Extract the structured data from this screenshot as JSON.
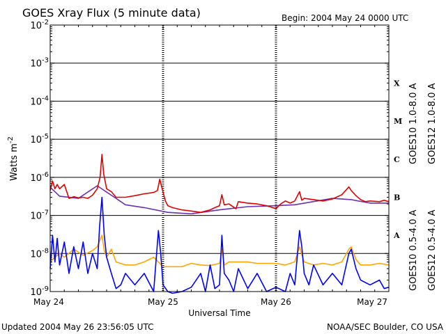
{
  "header": {
    "title": "GOES Xray Flux (5 minute data)",
    "begin": "Begin:  2004 May 24 0000 UTC"
  },
  "footer": {
    "updated": "Updated 2004 May 26 23:56:05 UTC",
    "credit": "NOAA/SEC Boulder, CO USA"
  },
  "colors": {
    "goes10_long": "#6a2fb5",
    "goes12_long": "#e00000",
    "goes10_short": "#ffa500",
    "goes12_short": "#0000ff"
  },
  "chart_data": {
    "type": "line",
    "title": "GOES Xray Flux (5 minute data)",
    "xlabel": "Universal Time",
    "ylabel": "Watts m",
    "ylabel_sup": "-2",
    "yscale": "log",
    "ylim": [
      1e-09,
      0.01
    ],
    "y_ticks": [
      {
        "value": 0.01,
        "base": "10",
        "exp": "-2"
      },
      {
        "value": 0.001,
        "base": "10",
        "exp": "-3"
      },
      {
        "value": 0.0001,
        "base": "10",
        "exp": "-4"
      },
      {
        "value": 1e-05,
        "base": "10",
        "exp": "-5"
      },
      {
        "value": 1e-06,
        "base": "10",
        "exp": "-6"
      },
      {
        "value": 1e-07,
        "base": "10",
        "exp": "-7"
      },
      {
        "value": 1e-08,
        "base": "10",
        "exp": "-8"
      },
      {
        "value": 1e-09,
        "base": "10",
        "exp": "-9"
      }
    ],
    "xlim": [
      0,
      72
    ],
    "x_unit": "hours since 2004 May 24 0000 UTC",
    "x_ticks": [
      {
        "value": 0,
        "label": "May 24"
      },
      {
        "value": 24,
        "label": "May 25"
      },
      {
        "value": 48,
        "label": "May 26"
      },
      {
        "value": 72,
        "label": "May 27"
      }
    ],
    "flare_classes": [
      {
        "label": "X",
        "value": 0.0003
      },
      {
        "label": "M",
        "value": 3e-05
      },
      {
        "label": "C",
        "value": 3e-06
      },
      {
        "label": "B",
        "value": 3e-07
      },
      {
        "label": "A",
        "value": 3e-08
      }
    ],
    "grid": "horizontal lines at each decade",
    "legend": "right side, rotated",
    "series": [
      {
        "name": "GOES10 1.0-8.0 A",
        "color": "#6a2fb5",
        "points": [
          [
            0,
            5.5e-07
          ],
          [
            2,
            3.2e-07
          ],
          [
            6,
            2.8e-07
          ],
          [
            10,
            6e-07
          ],
          [
            14,
            2.8e-07
          ],
          [
            16,
            1.9e-07
          ],
          [
            20,
            1.6e-07
          ],
          [
            25,
            1.2e-07
          ],
          [
            30,
            1.1e-07
          ],
          [
            36,
            1.4e-07
          ],
          [
            42,
            1.7e-07
          ],
          [
            48,
            1.8e-07
          ],
          [
            52,
            1.9e-07
          ],
          [
            60,
            2.8e-07
          ],
          [
            64,
            2.6e-07
          ],
          [
            68,
            2.1e-07
          ],
          [
            72,
            2.1e-07
          ]
        ]
      },
      {
        "name": "GOES12 1.0-8.0 A",
        "color": "#e00000",
        "points": [
          [
            0,
            4.5e-07
          ],
          [
            0.5,
            8e-07
          ],
          [
            1,
            5e-07
          ],
          [
            1.5,
            6.5e-07
          ],
          [
            2,
            5e-07
          ],
          [
            3,
            6.5e-07
          ],
          [
            4,
            2.8e-07
          ],
          [
            5,
            3.1e-07
          ],
          [
            6,
            2.9e-07
          ],
          [
            7,
            3e-07
          ],
          [
            8,
            2.8e-07
          ],
          [
            9,
            3.4e-07
          ],
          [
            10,
            5e-07
          ],
          [
            10.6,
            1e-06
          ],
          [
            11,
            4e-06
          ],
          [
            11.4,
            1.2e-06
          ],
          [
            12,
            5e-07
          ],
          [
            13,
            4.2e-07
          ],
          [
            14,
            3e-07
          ],
          [
            16,
            3e-07
          ],
          [
            18,
            3.3e-07
          ],
          [
            20,
            3.7e-07
          ],
          [
            22,
            4e-07
          ],
          [
            22.8,
            4.5e-07
          ],
          [
            23.3,
            9e-07
          ],
          [
            23.8,
            5e-07
          ],
          [
            24.5,
            2.4e-07
          ],
          [
            25,
            1.8e-07
          ],
          [
            26,
            1.6e-07
          ],
          [
            28,
            1.4e-07
          ],
          [
            30,
            1.3e-07
          ],
          [
            32,
            1.2e-07
          ],
          [
            34,
            1.4e-07
          ],
          [
            35,
            1.6e-07
          ],
          [
            36,
            1.8e-07
          ],
          [
            36.5,
            3.5e-07
          ],
          [
            37,
            1.9e-07
          ],
          [
            38,
            2e-07
          ],
          [
            39.5,
            1.5e-07
          ],
          [
            40,
            2.3e-07
          ],
          [
            42,
            2.1e-07
          ],
          [
            44,
            2e-07
          ],
          [
            46,
            1.8e-07
          ],
          [
            48,
            1.5e-07
          ],
          [
            49,
            2e-07
          ],
          [
            50,
            2.4e-07
          ],
          [
            51,
            2.1e-07
          ],
          [
            52,
            2.4e-07
          ],
          [
            53,
            4.2e-07
          ],
          [
            53.5,
            2.5e-07
          ],
          [
            54,
            2.8e-07
          ],
          [
            56,
            2.6e-07
          ],
          [
            58,
            2.4e-07
          ],
          [
            60,
            2.7e-07
          ],
          [
            62,
            3.5e-07
          ],
          [
            63,
            4.8e-07
          ],
          [
            63.5,
            5.6e-07
          ],
          [
            64,
            4.5e-07
          ],
          [
            65,
            3.3e-07
          ],
          [
            66,
            2.6e-07
          ],
          [
            67,
            2.3e-07
          ],
          [
            68,
            2.4e-07
          ],
          [
            70,
            2.3e-07
          ],
          [
            71,
            2.5e-07
          ],
          [
            72,
            2.3e-07
          ]
        ]
      },
      {
        "name": "GOES10 0.5-4.0 A",
        "color": "#ffa500",
        "points": [
          [
            0,
            6e-09
          ],
          [
            1,
            8e-09
          ],
          [
            2,
            1e-08
          ],
          [
            3,
            8e-09
          ],
          [
            5,
            1.3e-08
          ],
          [
            7,
            9e-09
          ],
          [
            9,
            1.2e-08
          ],
          [
            10,
            1.5e-08
          ],
          [
            11,
            3e-08
          ],
          [
            11.5,
            1.2e-08
          ],
          [
            12,
            8e-09
          ],
          [
            13,
            1.3e-08
          ],
          [
            14,
            6e-09
          ],
          [
            16,
            5e-09
          ],
          [
            18,
            5e-09
          ],
          [
            20,
            6e-09
          ],
          [
            22,
            8e-09
          ],
          [
            24,
            4.5e-09
          ],
          [
            26,
            4.5e-09
          ],
          [
            28,
            4.5e-09
          ],
          [
            30,
            5.5e-09
          ],
          [
            32,
            5e-09
          ],
          [
            34,
            4.8e-09
          ],
          [
            36,
            5.5e-09
          ],
          [
            36.5,
            1.3e-08
          ],
          [
            37,
            5e-09
          ],
          [
            38,
            6e-09
          ],
          [
            40,
            6e-09
          ],
          [
            42,
            6e-09
          ],
          [
            44,
            5.5e-09
          ],
          [
            46,
            5.5e-09
          ],
          [
            48,
            5.5e-09
          ],
          [
            50,
            5e-09
          ],
          [
            52,
            6e-09
          ],
          [
            53,
            1.5e-08
          ],
          [
            54,
            6e-09
          ],
          [
            56,
            5e-09
          ],
          [
            58,
            5.5e-09
          ],
          [
            60,
            5e-09
          ],
          [
            62,
            6e-09
          ],
          [
            63.5,
            1.3e-08
          ],
          [
            64,
            1.5e-08
          ],
          [
            65,
            7e-09
          ],
          [
            66,
            5e-09
          ],
          [
            68,
            5e-09
          ],
          [
            70,
            5.5e-09
          ],
          [
            72,
            5e-09
          ]
        ]
      },
      {
        "name": "GOES12 0.5-4.0 A",
        "color": "#0000ff",
        "points": [
          [
            0,
            4e-09
          ],
          [
            0.5,
            3e-08
          ],
          [
            1,
            6e-09
          ],
          [
            1.5,
            2.5e-08
          ],
          [
            2,
            5e-09
          ],
          [
            3,
            2e-08
          ],
          [
            4,
            3e-09
          ],
          [
            5,
            1.5e-08
          ],
          [
            6,
            4e-09
          ],
          [
            7,
            2e-08
          ],
          [
            8,
            3e-09
          ],
          [
            9,
            1e-08
          ],
          [
            10,
            4e-09
          ],
          [
            10.5,
            5e-08
          ],
          [
            11,
            3e-07
          ],
          [
            11.5,
            3e-08
          ],
          [
            12,
            8e-09
          ],
          [
            13,
            3e-09
          ],
          [
            14,
            1.2e-09
          ],
          [
            15,
            1.5e-09
          ],
          [
            16,
            3e-09
          ],
          [
            18,
            1.5e-09
          ],
          [
            20,
            3e-09
          ],
          [
            22,
            1e-09
          ],
          [
            23,
            4e-08
          ],
          [
            23.5,
            1e-08
          ],
          [
            24,
            1.5e-09
          ],
          [
            25,
            1e-09
          ],
          [
            26,
            9e-10
          ],
          [
            28,
            1e-09
          ],
          [
            30,
            1.3e-09
          ],
          [
            32,
            3e-09
          ],
          [
            33,
            1e-09
          ],
          [
            34,
            5e-09
          ],
          [
            35,
            1.2e-09
          ],
          [
            36,
            1.5e-09
          ],
          [
            36.5,
            3e-08
          ],
          [
            37,
            3e-09
          ],
          [
            38,
            2e-09
          ],
          [
            39,
            1e-09
          ],
          [
            40,
            4e-09
          ],
          [
            42,
            1.2e-09
          ],
          [
            44,
            3e-09
          ],
          [
            46,
            1e-09
          ],
          [
            48,
            1.3e-09
          ],
          [
            50,
            1e-09
          ],
          [
            51,
            3e-09
          ],
          [
            52,
            1.5e-09
          ],
          [
            53,
            4e-08
          ],
          [
            53.5,
            1.5e-08
          ],
          [
            54,
            3e-09
          ],
          [
            55,
            1.5e-09
          ],
          [
            56,
            5e-09
          ],
          [
            58,
            1.5e-09
          ],
          [
            60,
            3e-09
          ],
          [
            62,
            1.5e-09
          ],
          [
            63.5,
            1e-08
          ],
          [
            64,
            1.3e-08
          ],
          [
            65,
            4e-09
          ],
          [
            66,
            2e-09
          ],
          [
            68,
            1.5e-09
          ],
          [
            70,
            2e-09
          ],
          [
            71,
            1.2e-09
          ],
          [
            72,
            1.3e-09
          ]
        ]
      }
    ]
  }
}
